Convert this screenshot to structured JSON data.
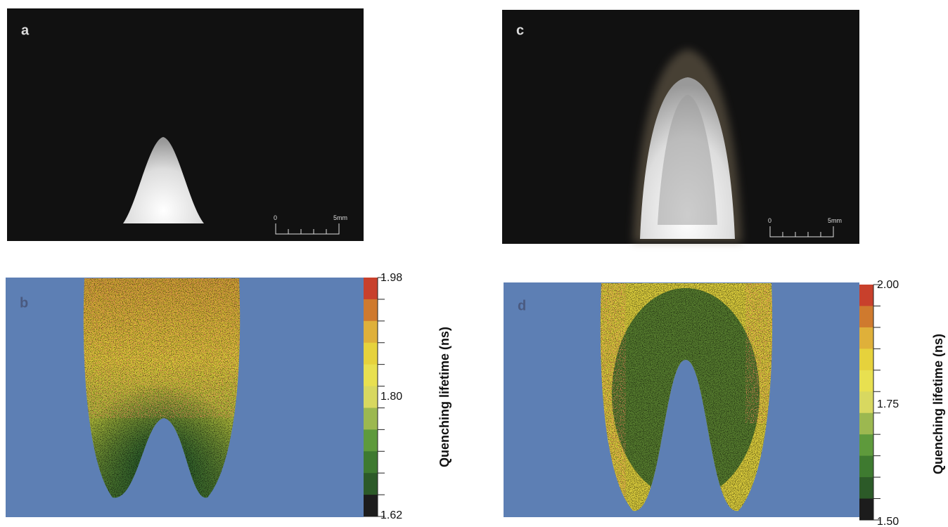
{
  "panels": [
    {
      "label": "a",
      "scale_bar": {
        "start": "0",
        "end": "5mm"
      }
    },
    {
      "label": "b",
      "colorbar": {
        "ticks": [
          "1.98",
          "1.80",
          "1.62"
        ],
        "title": "Quenching lifetime (ns)"
      }
    },
    {
      "label": "c",
      "scale_bar": {
        "start": "0",
        "end": "5mm"
      }
    },
    {
      "label": "d",
      "colorbar": {
        "ticks": [
          "2.00",
          "1.75",
          "1.50"
        ],
        "title": "Quenching lifetime (ns)"
      }
    }
  ]
}
